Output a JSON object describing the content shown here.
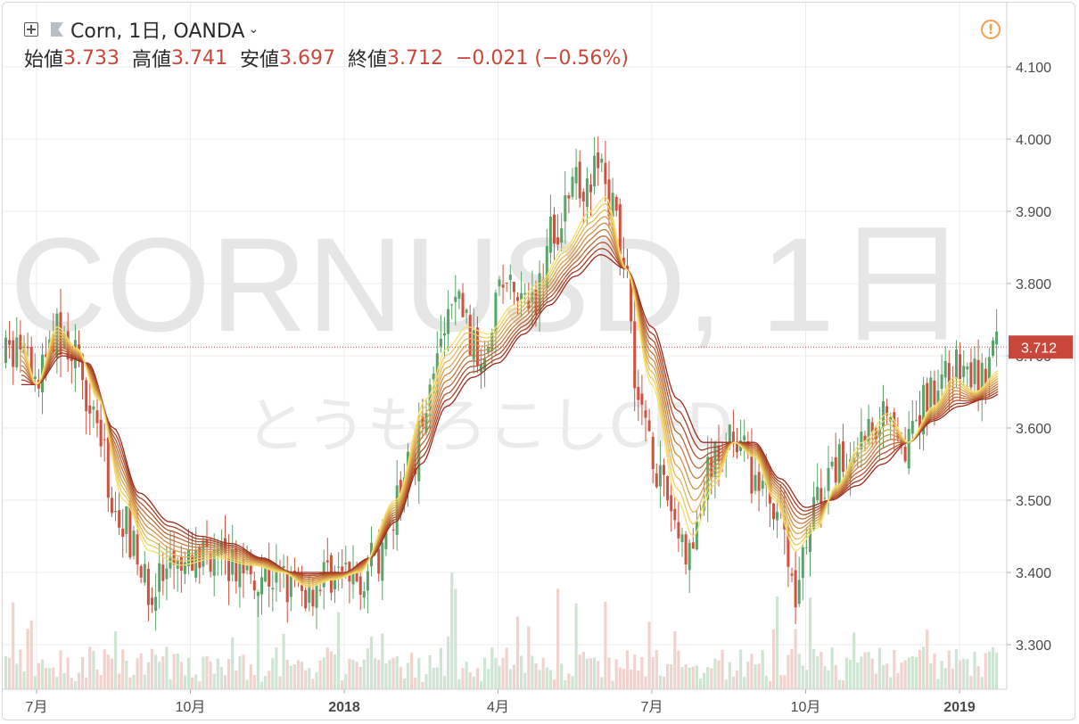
{
  "header": {
    "title": "Corn, 1日, OANDA",
    "dropdown_icon": "chevron-down-icon",
    "add_icon": "plus-box-icon",
    "flag_icon": "flag-icon",
    "alert_icon": "alert-circle-icon",
    "alert_glyph": "!"
  },
  "ohlc": {
    "open_label": "始値",
    "open": "3.733",
    "high_label": "高値",
    "high": "3.741",
    "low_label": "安値",
    "low": "3.697",
    "close_label": "終値",
    "close": "3.712",
    "change": "−0.021 (−0.56%)"
  },
  "watermark": {
    "symbol": "CORNUSD, 1日",
    "description": "とうもろこしCFD"
  },
  "colors": {
    "up": "#5aa36a",
    "down": "#d0513f",
    "price_label_bg": "#c8473a",
    "ribbon_slow": "#9e2a1c",
    "ribbon_fast": "#f7e06a",
    "volume_up": "#cfe5d3",
    "volume_down": "#f1d3ce"
  },
  "chart_data": {
    "type": "candlestick",
    "instrument": "Corn",
    "interval": "1日",
    "source": "OANDA",
    "ylim": [
      3.24,
      4.15
    ],
    "y_ticks": [
      "3.300",
      "3.400",
      "3.500",
      "3.600",
      "3.700",
      "3.800",
      "3.900",
      "4.000",
      "4.100"
    ],
    "x_ticks": [
      {
        "label": "7月",
        "month": 0
      },
      {
        "label": "10月",
        "month": 3
      },
      {
        "label": "2018",
        "month": 6,
        "bold": true
      },
      {
        "label": "4月",
        "month": 9
      },
      {
        "label": "7月",
        "month": 12
      },
      {
        "label": "10月",
        "month": 15
      },
      {
        "label": "2019",
        "month": 18,
        "bold": true
      }
    ],
    "last_price": "3.712",
    "price_anchors": [
      [
        -0.3,
        3.7
      ],
      [
        0.0,
        3.66
      ],
      [
        0.35,
        3.73
      ],
      [
        0.65,
        3.71
      ],
      [
        1.0,
        3.65
      ],
      [
        1.6,
        3.48
      ],
      [
        2.2,
        3.38
      ],
      [
        2.8,
        3.4
      ],
      [
        3.3,
        3.43
      ],
      [
        3.8,
        3.41
      ],
      [
        4.3,
        3.4
      ],
      [
        4.8,
        3.39
      ],
      [
        5.2,
        3.37
      ],
      [
        5.7,
        3.4
      ],
      [
        6.2,
        3.39
      ],
      [
        6.7,
        3.42
      ],
      [
        7.3,
        3.55
      ],
      [
        7.8,
        3.7
      ],
      [
        8.2,
        3.78
      ],
      [
        8.6,
        3.7
      ],
      [
        9.1,
        3.8
      ],
      [
        9.6,
        3.76
      ],
      [
        10.1,
        3.88
      ],
      [
        10.6,
        3.94
      ],
      [
        11.0,
        3.96
      ],
      [
        11.4,
        3.86
      ],
      [
        11.8,
        3.62
      ],
      [
        12.3,
        3.5
      ],
      [
        12.7,
        3.42
      ],
      [
        13.2,
        3.55
      ],
      [
        13.6,
        3.6
      ],
      [
        14.0,
        3.53
      ],
      [
        14.4,
        3.5
      ],
      [
        14.8,
        3.38
      ],
      [
        15.2,
        3.5
      ],
      [
        15.7,
        3.55
      ],
      [
        16.2,
        3.6
      ],
      [
        16.6,
        3.63
      ],
      [
        17.0,
        3.58
      ],
      [
        17.5,
        3.66
      ],
      [
        17.9,
        3.68
      ],
      [
        18.4,
        3.67
      ],
      [
        18.8,
        3.71
      ],
      [
        19.3,
        3.71
      ]
    ],
    "ribbon": {
      "type": "line",
      "lines": 10,
      "fast_anchors": [
        [
          -0.3,
          3.72
        ],
        [
          0.0,
          3.66
        ],
        [
          0.4,
          3.74
        ],
        [
          0.8,
          3.71
        ],
        [
          1.2,
          3.64
        ],
        [
          1.7,
          3.5
        ],
        [
          2.2,
          3.43
        ],
        [
          2.8,
          3.41
        ],
        [
          3.5,
          3.42
        ],
        [
          4.2,
          3.41
        ],
        [
          4.8,
          3.4
        ],
        [
          5.3,
          3.38
        ],
        [
          5.8,
          3.39
        ],
        [
          6.3,
          3.4
        ],
        [
          7.0,
          3.5
        ],
        [
          7.6,
          3.64
        ],
        [
          8.0,
          3.71
        ],
        [
          8.4,
          3.74
        ],
        [
          8.8,
          3.73
        ],
        [
          9.3,
          3.77
        ],
        [
          9.8,
          3.8
        ],
        [
          10.3,
          3.85
        ],
        [
          10.8,
          3.9
        ],
        [
          11.1,
          3.92
        ],
        [
          11.5,
          3.82
        ],
        [
          12.0,
          3.66
        ],
        [
          12.5,
          3.5
        ],
        [
          12.8,
          3.45
        ],
        [
          13.2,
          3.52
        ],
        [
          13.6,
          3.58
        ],
        [
          14.0,
          3.56
        ],
        [
          14.4,
          3.5
        ],
        [
          14.8,
          3.43
        ],
        [
          15.2,
          3.46
        ],
        [
          15.6,
          3.52
        ],
        [
          16.1,
          3.58
        ],
        [
          16.6,
          3.62
        ],
        [
          17.0,
          3.58
        ],
        [
          17.5,
          3.63
        ],
        [
          17.9,
          3.67
        ],
        [
          18.3,
          3.65
        ],
        [
          18.8,
          3.68
        ],
        [
          19.3,
          3.71
        ]
      ],
      "slow_anchors": [
        [
          -0.3,
          3.66
        ],
        [
          0.0,
          3.66
        ],
        [
          0.5,
          3.7
        ],
        [
          1.0,
          3.69
        ],
        [
          1.5,
          3.6
        ],
        [
          2.0,
          3.51
        ],
        [
          2.6,
          3.47
        ],
        [
          3.2,
          3.45
        ],
        [
          3.8,
          3.44
        ],
        [
          4.4,
          3.42
        ],
        [
          5.0,
          3.4
        ],
        [
          5.5,
          3.4
        ],
        [
          6.0,
          3.4
        ],
        [
          6.5,
          3.42
        ],
        [
          7.0,
          3.47
        ],
        [
          7.5,
          3.55
        ],
        [
          8.0,
          3.63
        ],
        [
          8.5,
          3.67
        ],
        [
          9.0,
          3.69
        ],
        [
          9.5,
          3.73
        ],
        [
          10.0,
          3.77
        ],
        [
          10.5,
          3.81
        ],
        [
          11.0,
          3.84
        ],
        [
          11.5,
          3.82
        ],
        [
          12.0,
          3.74
        ],
        [
          12.5,
          3.64
        ],
        [
          13.0,
          3.58
        ],
        [
          13.5,
          3.58
        ],
        [
          14.0,
          3.58
        ],
        [
          14.5,
          3.53
        ],
        [
          15.0,
          3.49
        ],
        [
          15.5,
          3.5
        ],
        [
          16.0,
          3.52
        ],
        [
          16.5,
          3.55
        ],
        [
          17.0,
          3.58
        ],
        [
          17.5,
          3.61
        ],
        [
          18.0,
          3.63
        ],
        [
          18.5,
          3.64
        ],
        [
          19.3,
          3.67
        ]
      ]
    },
    "grid": true,
    "legend": "none"
  }
}
